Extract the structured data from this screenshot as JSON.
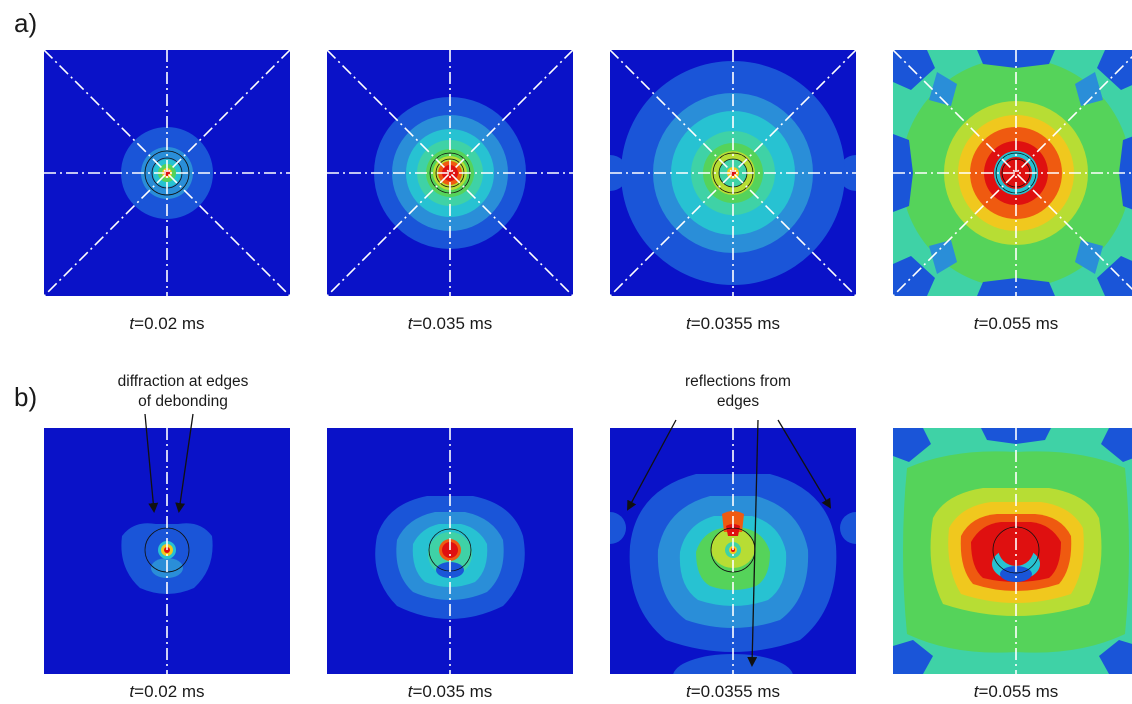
{
  "rows": [
    {
      "label": "a)",
      "panels": [
        {
          "t_var": "t",
          "t_value": "=0.02 ms"
        },
        {
          "t_var": "t",
          "t_value": "=0.035 ms"
        },
        {
          "t_var": "t",
          "t_value": "=0.0355 ms"
        },
        {
          "t_var": "t",
          "t_value": "=0.055 ms"
        }
      ]
    },
    {
      "label": "b)",
      "panels": [
        {
          "t_var": "t",
          "t_value": "=0.02 ms"
        },
        {
          "t_var": "t",
          "t_value": "=0.035 ms"
        },
        {
          "t_var": "t",
          "t_value": "=0.0355 ms"
        },
        {
          "t_var": "t",
          "t_value": "=0.055 ms"
        }
      ]
    }
  ],
  "annotations": {
    "diffraction": [
      "diffraction at edges",
      "of debonding"
    ],
    "reflections": [
      "reflections from",
      "edges"
    ]
  },
  "colors": {
    "level0": "#0a12c8",
    "level1": "#1a55d8",
    "level2": "#2a8ed8",
    "level3": "#27c2d2",
    "level4": "#3fd2a6",
    "level5": "#55d35a",
    "level6": "#b7dd34",
    "level7": "#f0c81e",
    "level8": "#ef5a10",
    "level9": "#df1010",
    "guide_lines": "#ffffff"
  }
}
